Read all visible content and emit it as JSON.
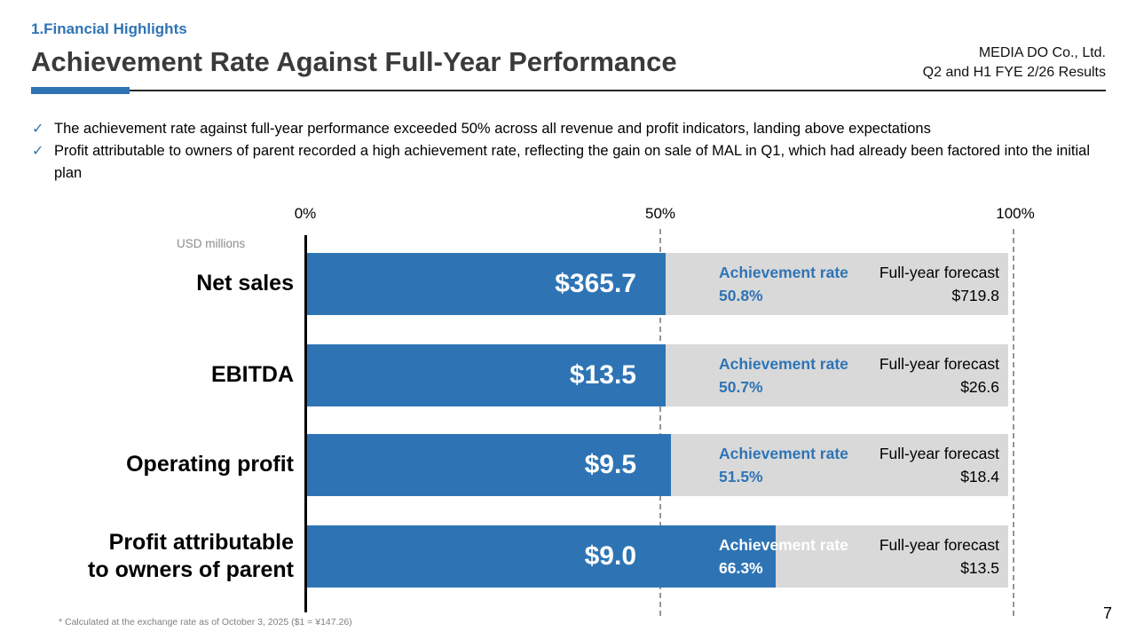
{
  "slide": {
    "section": "1.Financial Highlights",
    "title": "Achievement Rate Against Full-Year Performance",
    "company": "MEDIA DO Co., Ltd.",
    "subtitle": "Q2 and H1 FYE 2/26 Results",
    "bullets": [
      "The achievement rate against full-year performance exceeded 50% across all revenue and profit indicators, landing above expectations",
      "Profit attributable to owners of parent recorded a high achievement rate, reflecting the gain on sale of MAL in Q1, which had already been factored into the initial plan"
    ],
    "footnote": "* Calculated at the exchange rate as of October 3, 2025 ($1 = ¥147.26)",
    "page_number": "7"
  },
  "chart_data": {
    "type": "bar",
    "orientation": "horizontal",
    "unit_label": "USD millions",
    "axis_ticks": [
      "0%",
      "50%",
      "100%"
    ],
    "xlim": [
      0,
      100
    ],
    "grid": "dashed vertical gridlines at 50% and 100%",
    "legend_position": "none",
    "achievement_rate_label": "Achievement rate",
    "forecast_label": "Full-year forecast",
    "categories": [
      "Net sales",
      "EBITDA",
      "Operating profit",
      "Profit attributable to owners of parent"
    ],
    "rows": [
      {
        "category": "Net sales",
        "value": 365.7,
        "value_label": "$365.7",
        "achievement_rate_pct": 50.8,
        "rate_label": "50.8%",
        "forecast": 719.8,
        "forecast_value_label": "$719.8"
      },
      {
        "category": "EBITDA",
        "value": 13.5,
        "value_label": "$13.5",
        "achievement_rate_pct": 50.7,
        "rate_label": "50.7%",
        "forecast": 26.6,
        "forecast_value_label": "$26.6"
      },
      {
        "category": "Operating profit",
        "value": 9.5,
        "value_label": "$9.5",
        "achievement_rate_pct": 51.5,
        "rate_label": "51.5%",
        "forecast": 18.4,
        "forecast_value_label": "$18.4"
      },
      {
        "category": "Profit attributable\nto owners of parent",
        "value": 9.0,
        "value_label": "$9.0",
        "achievement_rate_pct": 66.3,
        "rate_label": "66.3%",
        "forecast": 13.5,
        "forecast_value_label": "$13.5"
      }
    ],
    "colors": {
      "bar_fill": "#2E74B5",
      "track": "#D9D9D9",
      "accent_text": "#2E74B5",
      "gridline": "#969696"
    }
  }
}
